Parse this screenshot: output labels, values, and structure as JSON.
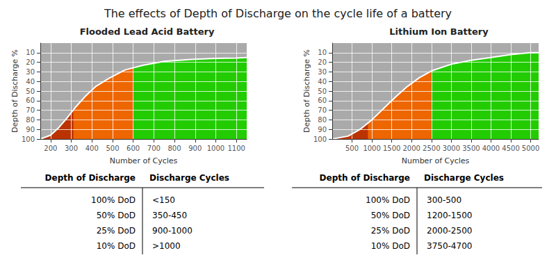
{
  "title": "The effects of Depth of Discharge on the cycle life of a battery",
  "chart_data": [
    {
      "type": "area",
      "title": "Flooded Lead Acid Battery",
      "xlabel": "Number of Cycles",
      "ylabel": "Depth of Discharge %",
      "xlim": [
        150,
        1150
      ],
      "ylim": [
        100,
        0
      ],
      "xticks": [
        200,
        300,
        400,
        500,
        600,
        700,
        800,
        900,
        1000,
        1100
      ],
      "yticks": [
        10,
        20,
        30,
        40,
        50,
        60,
        70,
        80,
        90,
        100
      ],
      "grid": true,
      "curve": {
        "x": [
          150,
          200,
          240,
          280,
          320,
          370,
          420,
          480,
          560,
          650,
          750,
          880,
          1000,
          1100,
          1150
        ],
        "values": [
          100,
          96,
          88,
          78,
          67,
          55,
          45,
          37,
          28,
          23,
          19,
          17,
          16,
          15.5,
          15
        ],
        "color": "#ffffff"
      },
      "zones": {
        "background": "#22cc00",
        "above_curve": "#aaaaaa",
        "below_curve": {
          "color": "#ee6600",
          "x_max": 600
        },
        "deep_discharge": {
          "color": "#bb3300",
          "x": [
            150,
            200,
            240,
            280,
            310,
            310
          ],
          "values": [
            100,
            96,
            88,
            78,
            68,
            100
          ]
        }
      },
      "table": {
        "columns": [
          "Depth of Discharge",
          "Discharge Cycles"
        ],
        "rows": [
          [
            "100% DoD",
            "<150"
          ],
          [
            "50% DoD",
            "350-450"
          ],
          [
            "25% DoD",
            "900-1000"
          ],
          [
            "10% DoD",
            ">1000"
          ]
        ]
      }
    },
    {
      "type": "area",
      "title": "Lithium Ion Battery",
      "xlabel": "Number of Cycles",
      "ylabel": "Depth of Discharge %",
      "xlim": [
        0,
        5200
      ],
      "ylim": [
        100,
        0
      ],
      "xticks": [
        500,
        1000,
        1500,
        2000,
        2500,
        3000,
        3500,
        4000,
        4500,
        5000
      ],
      "yticks": [
        10,
        20,
        30,
        40,
        50,
        60,
        70,
        80,
        90,
        100
      ],
      "grid": true,
      "curve": {
        "x": [
          0,
          400,
          700,
          1000,
          1300,
          1600,
          1900,
          2200,
          2500,
          3000,
          3500,
          4000,
          4500,
          5000,
          5200
        ],
        "values": [
          100,
          97,
          90,
          80,
          68,
          56,
          45,
          36,
          29,
          22,
          18,
          15,
          12,
          10,
          10
        ],
        "color": "#ffffff"
      },
      "zones": {
        "background": "#22cc00",
        "above_curve": "#aaaaaa",
        "below_curve": {
          "color": "#ee6600",
          "x_max": 2500
        },
        "deep_discharge": {
          "color": "#bb3300",
          "x": [
            0,
            400,
            700,
            900,
            900
          ],
          "values": [
            100,
            97,
            90,
            83,
            100
          ]
        }
      },
      "table": {
        "columns": [
          "Depth of Discharge",
          "Discharge Cycles"
        ],
        "rows": [
          [
            "100% DoD",
            "300-500"
          ],
          [
            "50% DoD",
            "1200-1500"
          ],
          [
            "25% DoD",
            "2000-2500"
          ],
          [
            "10% DoD",
            "3750-4700"
          ]
        ]
      }
    }
  ]
}
